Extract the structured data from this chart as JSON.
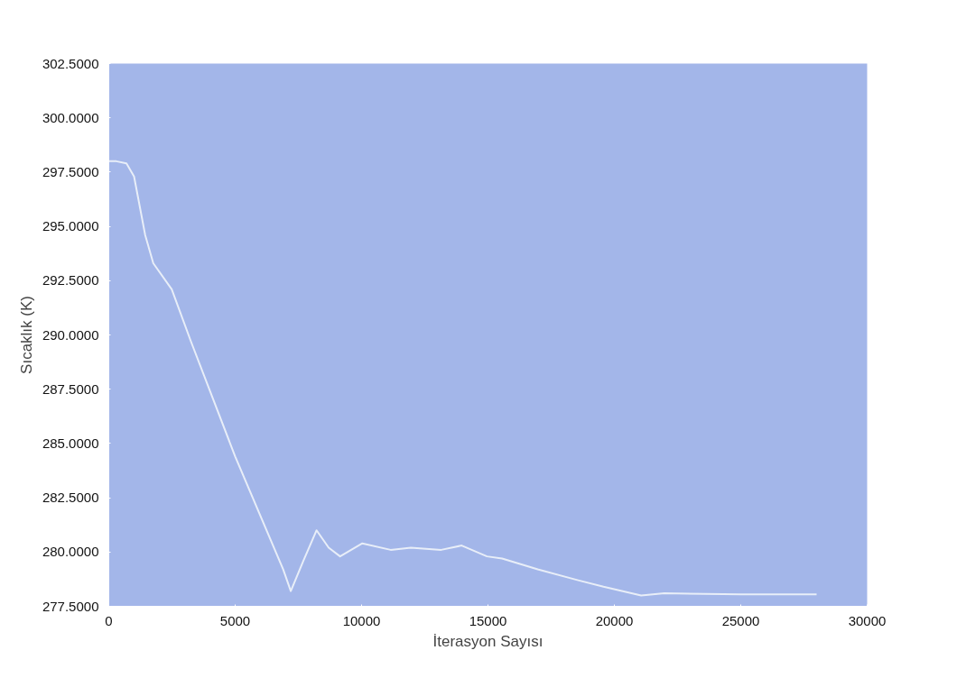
{
  "chart_data": {
    "type": "line",
    "xlabel": "İterasyon Sayısı",
    "ylabel": "Sıcaklık (K)",
    "x": [
      0,
      300,
      700,
      1000,
      1440,
      1760,
      2490,
      3250,
      5000,
      6900,
      7200,
      7700,
      8220,
      8700,
      9150,
      10030,
      11150,
      11950,
      13150,
      13960,
      14960,
      15560,
      16970,
      18570,
      19570,
      21060,
      21980,
      25000,
      28000
    ],
    "series": [
      {
        "color": "#e8eef8",
        "values": [
          298.0,
          298.0,
          297.9,
          297.3,
          294.6,
          293.3,
          292.1,
          289.7,
          284.4,
          279.2,
          278.2,
          279.6,
          281.0,
          280.2,
          279.8,
          280.4,
          280.1,
          280.2,
          280.1,
          280.3,
          279.8,
          279.7,
          279.2,
          278.7,
          278.4,
          278.0,
          278.1,
          278.05,
          278.05
        ]
      }
    ],
    "xlim": [
      0,
      30000
    ],
    "ylim": [
      277.5,
      302.5
    ],
    "xticks": [
      0,
      5000,
      10000,
      15000,
      20000,
      25000,
      30000
    ],
    "yticks": [
      {
        "value": 277.5,
        "label": "277.5000"
      },
      {
        "value": 280,
        "label": "280.0000"
      },
      {
        "value": 282.5,
        "label": "282.5000"
      },
      {
        "value": 285,
        "label": "285.0000"
      },
      {
        "value": 287.5,
        "label": "287.5000"
      },
      {
        "value": 290,
        "label": "290.0000"
      },
      {
        "value": 292.5,
        "label": "292.5000"
      },
      {
        "value": 295,
        "label": "295.0000"
      },
      {
        "value": 297.5,
        "label": "297.5000"
      },
      {
        "value": 300,
        "label": "300.0000"
      },
      {
        "value": 302.5,
        "label": "302.5000"
      }
    ],
    "grid": false,
    "marker": "none",
    "line_style": "solid"
  }
}
